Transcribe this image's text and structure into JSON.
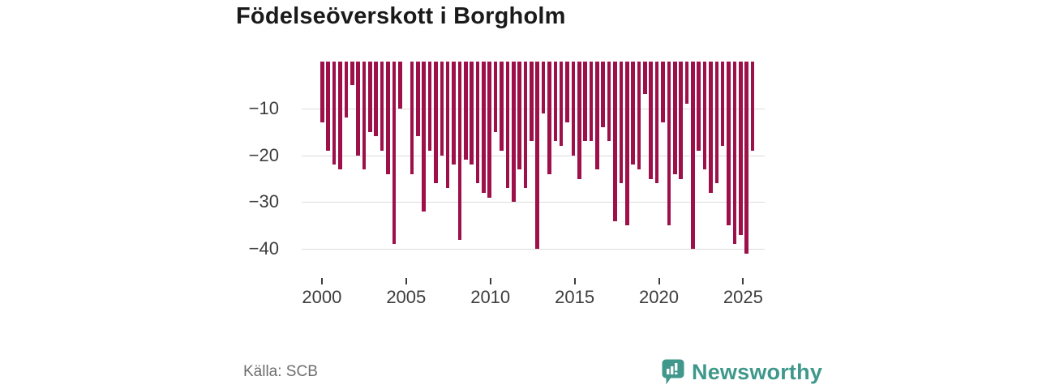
{
  "title": "Födelseöverskott i Borgholm",
  "source": "Källa: SCB",
  "logo": {
    "text": "Newsworthy",
    "color": "#3f988b"
  },
  "colors": {
    "bar": "#9d1049",
    "gridline": "#dcdcdc",
    "axis_text": "#3d3d3d",
    "title_text": "#1a1a1a",
    "source_text": "#6f6f6f"
  },
  "chart_data": {
    "type": "bar",
    "title": "Födelseöverskott i Borgholm",
    "xlabel": "",
    "ylabel": "",
    "y_tick_labels": [
      "−10",
      "−20",
      "−30",
      "−40"
    ],
    "y_tick_values": [
      -10,
      -20,
      -30,
      -40
    ],
    "ylim": [
      -44,
      0
    ],
    "x_tick_labels": [
      "2000",
      "2005",
      "2010",
      "2015",
      "2020",
      "2025"
    ],
    "x_domain_years": [
      2000,
      2025.6
    ],
    "grid": "horizontal",
    "legend": "none",
    "bar_anchor": "zero-top",
    "values": [
      -13,
      -19,
      -22,
      -23,
      -12,
      -5,
      -20,
      -23,
      -15,
      -16,
      -19,
      -24,
      -39,
      -10,
      null,
      -24,
      -16,
      -32,
      -19,
      -26,
      -20,
      -27,
      -22,
      -38,
      -21,
      -22,
      -26,
      -28,
      -29,
      -15,
      -19,
      -27,
      -30,
      -23,
      -27,
      -17,
      -40,
      -11,
      -24,
      -17,
      -18,
      -13,
      -20,
      -25,
      -17,
      -17,
      -23,
      -14,
      -17,
      -34,
      -26,
      -35,
      -22,
      -23,
      -7,
      -25,
      -26,
      -13,
      -35,
      -24,
      -25,
      -9,
      -40,
      -19,
      -23,
      -28,
      -26,
      -18,
      -35,
      -39,
      -37,
      -41,
      -19
    ],
    "gap_note_indices": [
      14
    ],
    "short_bar_indices": [
      5,
      22,
      54,
      61
    ]
  }
}
